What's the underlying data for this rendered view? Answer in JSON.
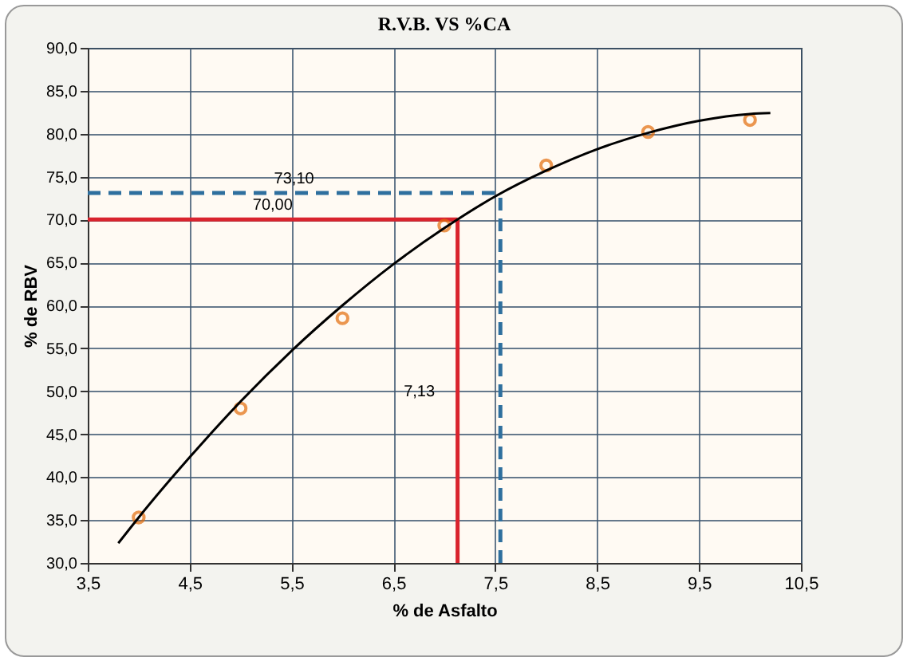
{
  "chart_data": {
    "type": "scatter",
    "title": "R.V.B. VS %CA",
    "xlabel": "% de Asfalto",
    "ylabel": "% de RBV",
    "xlim": [
      3.5,
      10.5
    ],
    "xticks": [
      {
        "value": 3.5,
        "label": "3,5"
      },
      {
        "value": 4.5,
        "label": "4,5"
      },
      {
        "value": 5.5,
        "label": "5,5"
      },
      {
        "value": 6.5,
        "label": "6,5"
      },
      {
        "value": 7.5,
        "label": "7,5"
      },
      {
        "value": 8.5,
        "label": "8,5"
      },
      {
        "value": 9.5,
        "label": "9,5"
      },
      {
        "value": 10.5,
        "label": "10,5"
      }
    ],
    "ylim": [
      30,
      90
    ],
    "yticks": [
      {
        "value": 30,
        "label": "30,0"
      },
      {
        "value": 35,
        "label": "35,0"
      },
      {
        "value": 40,
        "label": "40,0"
      },
      {
        "value": 45,
        "label": "45,0"
      },
      {
        "value": 50,
        "label": "50,0"
      },
      {
        "value": 55,
        "label": "55,0"
      },
      {
        "value": 60,
        "label": "60,0"
      },
      {
        "value": 65,
        "label": "65,0"
      },
      {
        "value": 70,
        "label": "70,0"
      },
      {
        "value": 75,
        "label": "75,0"
      },
      {
        "value": 80,
        "label": "80,0"
      },
      {
        "value": 85,
        "label": "85,0"
      },
      {
        "value": 90,
        "label": "90,0"
      }
    ],
    "grid": true,
    "series": [
      {
        "type": "scatter",
        "marker": "circle",
        "color": "#e36c0a",
        "x": [
          4,
          5,
          6,
          7,
          8,
          9,
          10
        ],
        "values": [
          35.3,
          48.0,
          58.5,
          69.3,
          76.3,
          80.2,
          81.6
        ]
      },
      {
        "type": "line",
        "color": "#000000",
        "x": [
          3.8,
          4,
          4.5,
          5,
          5.5,
          6,
          6.5,
          7,
          7.5,
          8,
          8.5,
          9,
          9.5,
          10,
          10.2
        ],
        "values": [
          32.3,
          35.3,
          42.3,
          48.8,
          54.7,
          60.0,
          64.8,
          69.0,
          72.7,
          75.7,
          78.2,
          80.1,
          81.5,
          82.3,
          82.4
        ]
      }
    ],
    "ref_lines": [
      {
        "axis": "y",
        "value": 70,
        "label": "70,00",
        "color": "#d9232d",
        "line_style": "solid"
      },
      {
        "axis": "x",
        "value": 7.13,
        "label": "7,13",
        "color": "#d9232d",
        "line_style": "solid"
      },
      {
        "axis": "y",
        "value": 73.1,
        "label": "73,10",
        "color": "#2e6f9e",
        "line_style": "dashed"
      },
      {
        "axis": "x",
        "value": 7.55,
        "color": "#2e6f9e",
        "line_style": "dashed"
      }
    ]
  }
}
